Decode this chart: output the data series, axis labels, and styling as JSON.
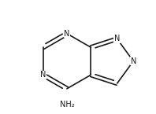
{
  "bg_color": "#ffffff",
  "line_color": "#1a1a1a",
  "text_color": "#1a1a1a",
  "font_size_atom": 7.0,
  "line_width": 1.2,
  "figsize": [
    1.98,
    1.45
  ],
  "dpi": 100,
  "xlim": [
    -1.6,
    2.4
  ],
  "ylim": [
    -1.9,
    2.2
  ]
}
